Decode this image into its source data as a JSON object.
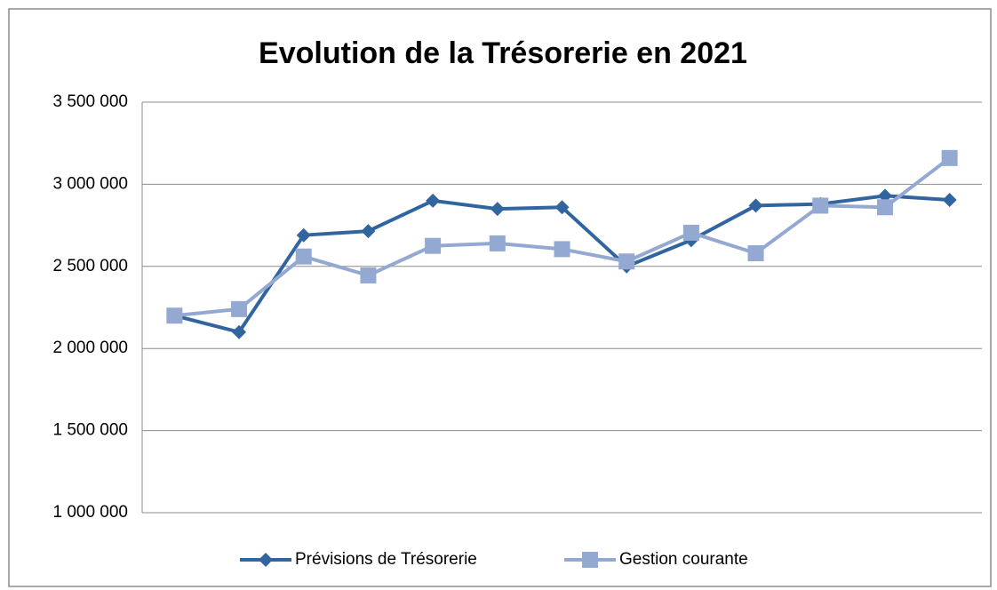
{
  "chart_data": {
    "type": "line",
    "title": "Evolution de la Trésorerie en 2021",
    "categories": [
      null,
      null,
      null,
      null,
      null,
      null,
      null,
      null,
      null,
      null,
      null,
      null,
      null
    ],
    "series": [
      {
        "name": "Prévisions de Trésorerie",
        "color": "#31659f",
        "marker": "diamond",
        "values": [
          2200000,
          2100000,
          2690000,
          2715000,
          2900000,
          2850000,
          2860000,
          2500000,
          2660000,
          2870000,
          2880000,
          2930000,
          2905000
        ]
      },
      {
        "name": "Gestion courante",
        "color": "#93a9d1",
        "marker": "square",
        "values": [
          2200000,
          2240000,
          2560000,
          2445000,
          2625000,
          2640000,
          2605000,
          2530000,
          2705000,
          2580000,
          2870000,
          2860000,
          3160000
        ]
      }
    ],
    "ylim": [
      1000000,
      3500000
    ],
    "yticks": [
      {
        "value": 1000000,
        "label": "1 000 000"
      },
      {
        "value": 1500000,
        "label": "1 500 000"
      },
      {
        "value": 2000000,
        "label": "2 000 000"
      },
      {
        "value": 2500000,
        "label": "2 500 000"
      },
      {
        "value": 3000000,
        "label": "3 000 000"
      },
      {
        "value": 3500000,
        "label": "3 500 000"
      }
    ],
    "grid": true,
    "legend": "bottom"
  }
}
